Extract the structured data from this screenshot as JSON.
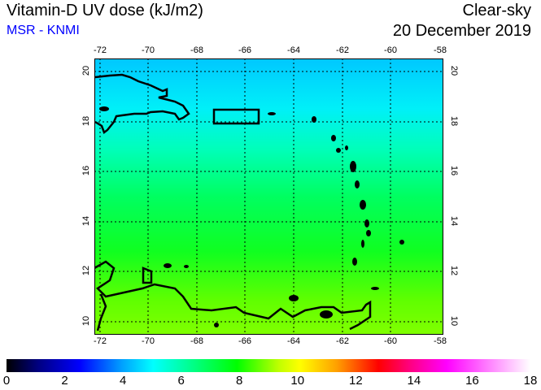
{
  "header": {
    "title": "Vitamin-D UV dose (kJ/m2)",
    "source": "MSR - KNMI",
    "sky": "Clear-sky",
    "date": "20 December 2019"
  },
  "map": {
    "lon_ticks": [
      "-72",
      "-70",
      "-68",
      "-66",
      "-64",
      "-62",
      "-60",
      "-58"
    ],
    "lat_ticks": [
      "20",
      "18",
      "16",
      "14",
      "12",
      "10"
    ]
  },
  "colorbar": {
    "labels": [
      "0",
      "2",
      "4",
      "6",
      "8",
      "10",
      "12",
      "14",
      "16",
      "18"
    ],
    "min": 0,
    "max": 18
  }
}
